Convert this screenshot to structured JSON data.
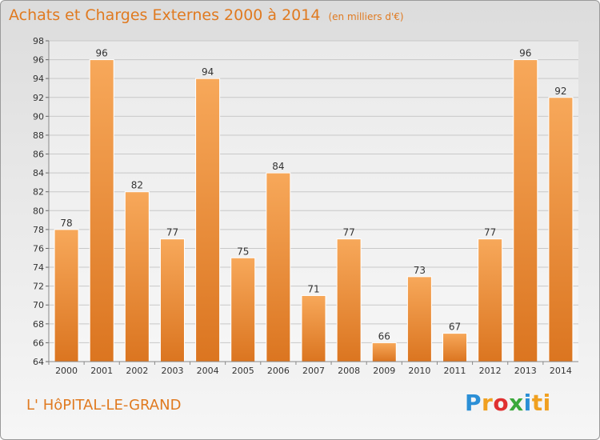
{
  "title": "Achats et Charges Externes 2000 à 2014",
  "unit_note": "(en milliers d'€)",
  "place": "L' HôPITAL-LE-GRAND",
  "brand": {
    "letters": [
      "P",
      "r",
      "o",
      "x",
      "i",
      "ti"
    ],
    "colors": [
      "#2b8fd6",
      "#f0a020",
      "#e03030",
      "#3aa83a",
      "#2b8fd6",
      "#f0a020"
    ]
  },
  "colors": {
    "bar_light": "#f7a85a",
    "bar_dark": "#db7520",
    "text_accent": "#e07a20"
  },
  "chart_data": {
    "type": "bar",
    "title": "Achats et Charges Externes 2000 à 2014",
    "categories": [
      "2000",
      "2001",
      "2002",
      "2003",
      "2004",
      "2005",
      "2006",
      "2007",
      "2008",
      "2009",
      "2010",
      "2011",
      "2012",
      "2013",
      "2014"
    ],
    "values": [
      78,
      96,
      82,
      77,
      94,
      75,
      84,
      71,
      77,
      66,
      73,
      67,
      77,
      96,
      92
    ],
    "ylim": [
      64,
      98
    ],
    "yticks": [
      64,
      66,
      68,
      70,
      72,
      74,
      76,
      78,
      80,
      82,
      84,
      86,
      88,
      90,
      92,
      94,
      96,
      98
    ],
    "grid": true,
    "data_labels": true
  }
}
